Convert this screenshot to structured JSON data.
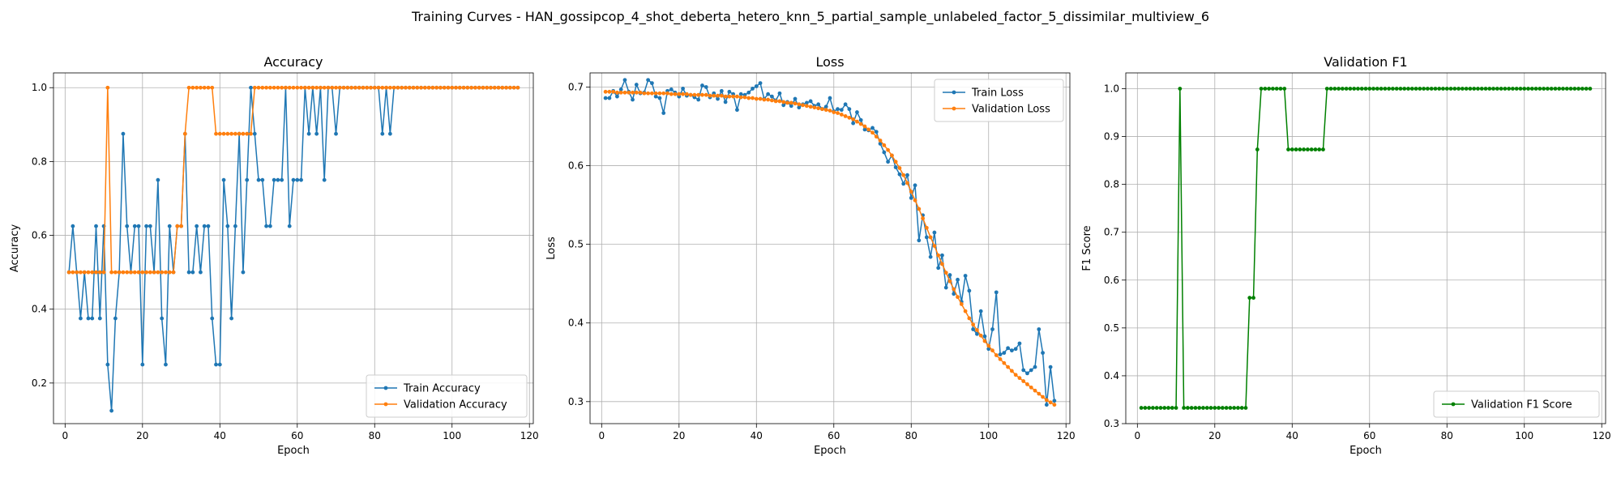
{
  "figure": {
    "suptitle": "Training Curves - HAN_gossipcop_4_shot_deberta_hetero_knn_5_partial_sample_unlabeled_factor_5_dissimilar_multiview_6"
  },
  "chart_data": [
    {
      "type": "line",
      "title": "Accuracy",
      "xlabel": "Epoch",
      "ylabel": "Accuracy",
      "xlim": [
        -3,
        121
      ],
      "ylim": [
        0.09,
        1.04
      ],
      "xticks": [
        0,
        20,
        40,
        60,
        80,
        100,
        120
      ],
      "yticks": [
        0.2,
        0.4,
        0.6,
        0.8,
        1.0
      ],
      "ytick_labels": [
        "0.2",
        "0.4",
        "0.6",
        "0.8",
        "1.0"
      ],
      "grid": true,
      "legend_position": "lower-right",
      "series": [
        {
          "name": "Train Accuracy",
          "color": "#1f77b4",
          "values": [
            0.5,
            0.625,
            0.5,
            0.375,
            0.5,
            0.375,
            0.375,
            0.625,
            0.375,
            0.625,
            0.25,
            0.125,
            0.375,
            0.5,
            0.875,
            0.625,
            0.5,
            0.625,
            0.625,
            0.25,
            0.625,
            0.625,
            0.5,
            0.75,
            0.375,
            0.25,
            0.625,
            0.5,
            0.625,
            0.625,
            0.875,
            0.5,
            0.5,
            0.625,
            0.5,
            0.625,
            0.625,
            0.375,
            0.25,
            0.25,
            0.75,
            0.625,
            0.375,
            0.625,
            0.875,
            0.5,
            0.75,
            1.0,
            0.875,
            0.75,
            0.75,
            0.625,
            0.625,
            0.75,
            0.75,
            0.75,
            1.0,
            0.625,
            0.75,
            0.75,
            0.75,
            1.0,
            0.875,
            1.0,
            0.875,
            1.0,
            0.75,
            1.0,
            1.0,
            0.875,
            1.0,
            1.0,
            1.0,
            1.0,
            1.0,
            1.0,
            1.0,
            1.0,
            1.0,
            1.0,
            1.0,
            0.875,
            1.0,
            0.875,
            1.0,
            1.0,
            1.0,
            1.0,
            1.0,
            1.0,
            1.0,
            1.0,
            1.0,
            1.0,
            1.0,
            1.0,
            1.0,
            1.0,
            1.0,
            1.0,
            1.0,
            1.0,
            1.0,
            1.0,
            1.0,
            1.0,
            1.0,
            1.0,
            1.0,
            1.0,
            1.0,
            1.0,
            1.0,
            1.0,
            1.0,
            1.0,
            1.0
          ]
        },
        {
          "name": "Validation Accuracy",
          "color": "#ff7f0e",
          "values": [
            0.5,
            0.5,
            0.5,
            0.5,
            0.5,
            0.5,
            0.5,
            0.5,
            0.5,
            0.5,
            1.0,
            0.5,
            0.5,
            0.5,
            0.5,
            0.5,
            0.5,
            0.5,
            0.5,
            0.5,
            0.5,
            0.5,
            0.5,
            0.5,
            0.5,
            0.5,
            0.5,
            0.5,
            0.625,
            0.625,
            0.875,
            1.0,
            1.0,
            1.0,
            1.0,
            1.0,
            1.0,
            1.0,
            0.875,
            0.875,
            0.875,
            0.875,
            0.875,
            0.875,
            0.875,
            0.875,
            0.875,
            0.875,
            1.0,
            1.0,
            1.0,
            1.0,
            1.0,
            1.0,
            1.0,
            1.0,
            1.0,
            1.0,
            1.0,
            1.0,
            1.0,
            1.0,
            1.0,
            1.0,
            1.0,
            1.0,
            1.0,
            1.0,
            1.0,
            1.0,
            1.0,
            1.0,
            1.0,
            1.0,
            1.0,
            1.0,
            1.0,
            1.0,
            1.0,
            1.0,
            1.0,
            1.0,
            1.0,
            1.0,
            1.0,
            1.0,
            1.0,
            1.0,
            1.0,
            1.0,
            1.0,
            1.0,
            1.0,
            1.0,
            1.0,
            1.0,
            1.0,
            1.0,
            1.0,
            1.0,
            1.0,
            1.0,
            1.0,
            1.0,
            1.0,
            1.0,
            1.0,
            1.0,
            1.0,
            1.0,
            1.0,
            1.0,
            1.0,
            1.0,
            1.0,
            1.0,
            1.0
          ]
        }
      ]
    },
    {
      "type": "line",
      "title": "Loss",
      "xlabel": "Epoch",
      "ylabel": "Loss",
      "xlim": [
        -3,
        121
      ],
      "ylim": [
        0.272,
        0.718
      ],
      "xticks": [
        0,
        20,
        40,
        60,
        80,
        100,
        120
      ],
      "yticks": [
        0.3,
        0.4,
        0.5,
        0.6,
        0.7
      ],
      "ytick_labels": [
        "0.3",
        "0.4",
        "0.5",
        "0.6",
        "0.7"
      ],
      "grid": true,
      "legend_position": "upper-right",
      "series": [
        {
          "name": "Train Loss",
          "color": "#1f77b4",
          "values": [
            0.686,
            0.686,
            0.695,
            0.688,
            0.697,
            0.709,
            0.694,
            0.684,
            0.703,
            0.692,
            0.693,
            0.709,
            0.705,
            0.688,
            0.686,
            0.667,
            0.695,
            0.697,
            0.693,
            0.688,
            0.698,
            0.689,
            0.69,
            0.687,
            0.684,
            0.702,
            0.7,
            0.687,
            0.692,
            0.685,
            0.695,
            0.681,
            0.694,
            0.691,
            0.671,
            0.691,
            0.69,
            0.693,
            0.698,
            0.701,
            0.705,
            0.685,
            0.691,
            0.688,
            0.683,
            0.692,
            0.677,
            0.681,
            0.676,
            0.685,
            0.674,
            0.678,
            0.68,
            0.682,
            0.676,
            0.678,
            0.672,
            0.675,
            0.686,
            0.669,
            0.672,
            0.671,
            0.678,
            0.672,
            0.654,
            0.668,
            0.658,
            0.646,
            0.645,
            0.648,
            0.643,
            0.628,
            0.617,
            0.605,
            0.613,
            0.598,
            0.589,
            0.577,
            0.588,
            0.559,
            0.575,
            0.505,
            0.537,
            0.509,
            0.484,
            0.515,
            0.47,
            0.486,
            0.445,
            0.461,
            0.437,
            0.455,
            0.427,
            0.46,
            0.441,
            0.392,
            0.386,
            0.415,
            0.383,
            0.367,
            0.392,
            0.439,
            0.36,
            0.362,
            0.368,
            0.365,
            0.367,
            0.374,
            0.34,
            0.336,
            0.34,
            0.344,
            0.392,
            0.362,
            0.296,
            0.344,
            0.301
          ]
        },
        {
          "name": "Validation Loss",
          "color": "#ff7f0e",
          "values": [
            0.694,
            0.694,
            0.694,
            0.693,
            0.693,
            0.693,
            0.693,
            0.693,
            0.693,
            0.693,
            0.692,
            0.692,
            0.692,
            0.692,
            0.692,
            0.692,
            0.692,
            0.691,
            0.691,
            0.691,
            0.691,
            0.691,
            0.69,
            0.69,
            0.69,
            0.69,
            0.69,
            0.689,
            0.689,
            0.689,
            0.689,
            0.688,
            0.688,
            0.688,
            0.688,
            0.687,
            0.687,
            0.686,
            0.686,
            0.685,
            0.685,
            0.684,
            0.684,
            0.683,
            0.682,
            0.682,
            0.681,
            0.68,
            0.68,
            0.679,
            0.678,
            0.677,
            0.676,
            0.675,
            0.674,
            0.673,
            0.672,
            0.671,
            0.67,
            0.668,
            0.667,
            0.665,
            0.663,
            0.661,
            0.659,
            0.656,
            0.653,
            0.65,
            0.646,
            0.642,
            0.637,
            0.632,
            0.626,
            0.62,
            0.613,
            0.605,
            0.597,
            0.588,
            0.578,
            0.567,
            0.556,
            0.545,
            0.533,
            0.521,
            0.509,
            0.498,
            0.486,
            0.475,
            0.464,
            0.453,
            0.443,
            0.433,
            0.424,
            0.415,
            0.406,
            0.398,
            0.391,
            0.384,
            0.377,
            0.371,
            0.365,
            0.359,
            0.354,
            0.349,
            0.344,
            0.339,
            0.334,
            0.33,
            0.326,
            0.322,
            0.318,
            0.314,
            0.31,
            0.306,
            0.302,
            0.299,
            0.296
          ]
        }
      ]
    },
    {
      "type": "line",
      "title": "Validation F1",
      "xlabel": "Epoch",
      "ylabel": "F1 Score",
      "xlim": [
        -3,
        121
      ],
      "ylim": [
        0.3,
        1.033
      ],
      "xticks": [
        0,
        20,
        40,
        60,
        80,
        100,
        120
      ],
      "yticks": [
        0.3,
        0.4,
        0.5,
        0.6,
        0.7,
        0.8,
        0.9,
        1.0
      ],
      "ytick_labels": [
        "0.3",
        "0.4",
        "0.5",
        "0.6",
        "0.7",
        "0.8",
        "0.9",
        "1.0"
      ],
      "grid": true,
      "legend_position": "lower-right",
      "series": [
        {
          "name": "Validation F1 Score",
          "color": "#008000",
          "values": [
            0.333,
            0.333,
            0.333,
            0.333,
            0.333,
            0.333,
            0.333,
            0.333,
            0.333,
            0.333,
            1.0,
            0.333,
            0.333,
            0.333,
            0.333,
            0.333,
            0.333,
            0.333,
            0.333,
            0.333,
            0.333,
            0.333,
            0.333,
            0.333,
            0.333,
            0.333,
            0.333,
            0.333,
            0.563,
            0.563,
            0.873,
            1.0,
            1.0,
            1.0,
            1.0,
            1.0,
            1.0,
            1.0,
            0.873,
            0.873,
            0.873,
            0.873,
            0.873,
            0.873,
            0.873,
            0.873,
            0.873,
            0.873,
            1.0,
            1.0,
            1.0,
            1.0,
            1.0,
            1.0,
            1.0,
            1.0,
            1.0,
            1.0,
            1.0,
            1.0,
            1.0,
            1.0,
            1.0,
            1.0,
            1.0,
            1.0,
            1.0,
            1.0,
            1.0,
            1.0,
            1.0,
            1.0,
            1.0,
            1.0,
            1.0,
            1.0,
            1.0,
            1.0,
            1.0,
            1.0,
            1.0,
            1.0,
            1.0,
            1.0,
            1.0,
            1.0,
            1.0,
            1.0,
            1.0,
            1.0,
            1.0,
            1.0,
            1.0,
            1.0,
            1.0,
            1.0,
            1.0,
            1.0,
            1.0,
            1.0,
            1.0,
            1.0,
            1.0,
            1.0,
            1.0,
            1.0,
            1.0,
            1.0,
            1.0,
            1.0,
            1.0,
            1.0,
            1.0,
            1.0,
            1.0,
            1.0,
            1.0
          ]
        }
      ]
    }
  ]
}
